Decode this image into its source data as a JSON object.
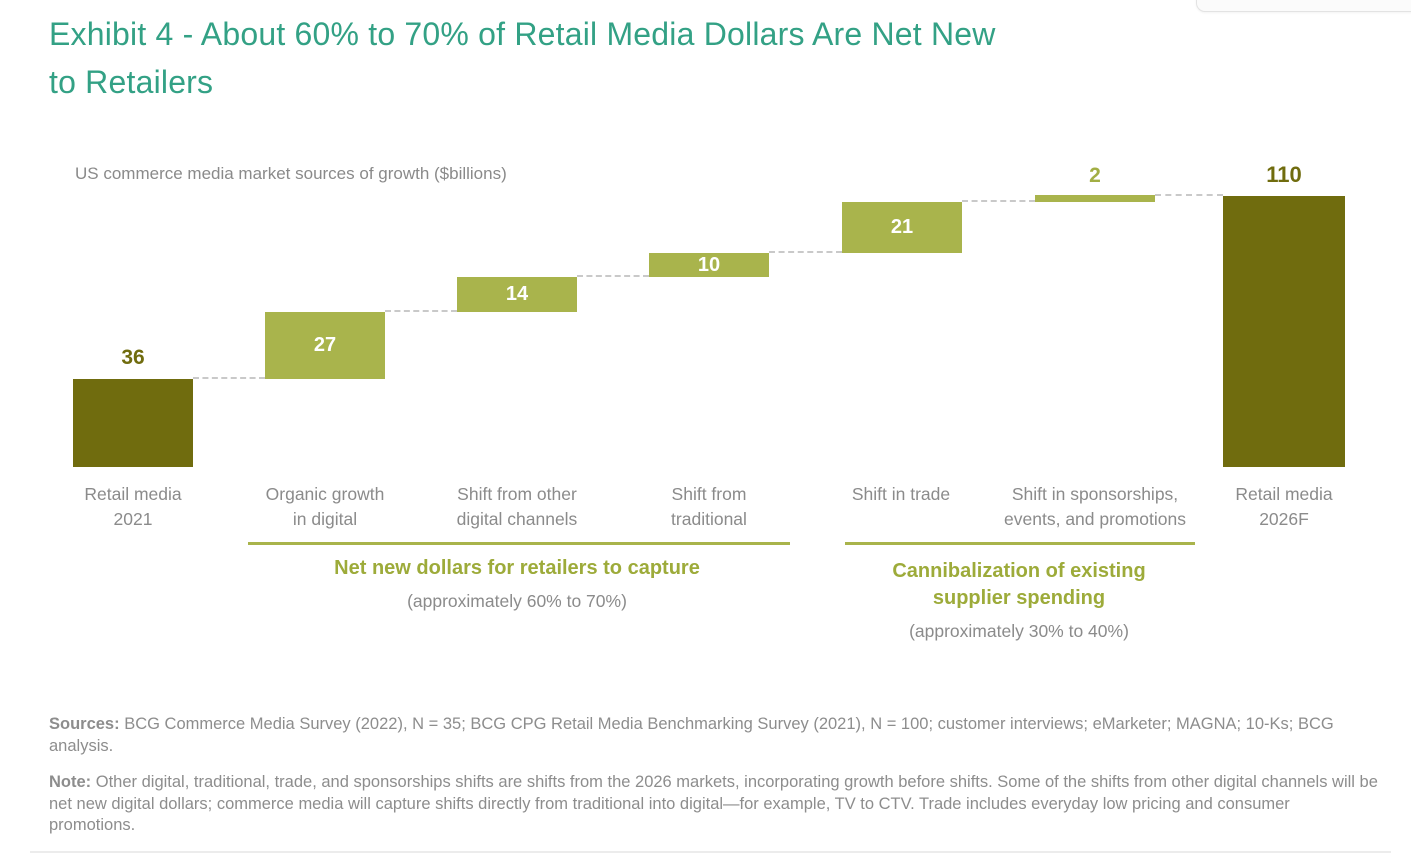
{
  "header": {
    "title_line1": "Exhibit 4 - About 60% to 70% of Retail Media Dollars Are Net New",
    "title_line2": "to Retailers"
  },
  "chart": {
    "subtitle": "US commerce media market sources of growth ($billions)",
    "bar_labels": [
      {
        "line1": "Retail media",
        "line2": "2021"
      },
      {
        "line1": "Organic growth",
        "line2": "in digital"
      },
      {
        "line1": "Shift from other",
        "line2": "digital channels"
      },
      {
        "line1": "Shift from",
        "line2": "traditional"
      },
      {
        "line1": "Shift in trade",
        "line2": ""
      },
      {
        "line1": "Shift in sponsorships,",
        "line2": "events, and promotions"
      },
      {
        "line1": "Retail media",
        "line2": "2026F"
      }
    ],
    "groups": [
      {
        "label": "Net new dollars for retailers to capture",
        "sublabel": "(approximately 60% to 70%)"
      },
      {
        "label": "Cannibalization of existing supplier spending",
        "sublabel": "(approximately 30% to 40%)"
      }
    ]
  },
  "chart_data": {
    "type": "bar",
    "subtype": "waterfall",
    "title": "Exhibit 4 - About 60% to 70% of Retail Media Dollars Are Net New to Retailers",
    "subtitle": "US commerce media market sources of growth ($billions)",
    "unit": "$billions",
    "categories": [
      "Retail media 2021",
      "Organic growth in digital",
      "Shift from other digital channels",
      "Shift from traditional",
      "Shift in trade",
      "Shift in sponsorships, events, and promotions",
      "Retail media 2026F"
    ],
    "values": [
      36,
      27,
      14,
      10,
      21,
      2,
      110
    ],
    "bar_roles": [
      "total",
      "increase",
      "increase",
      "increase",
      "increase",
      "increase",
      "total"
    ],
    "cumulative_start": [
      0,
      36,
      63,
      77,
      87,
      108,
      0
    ],
    "cumulative_end": [
      36,
      63,
      77,
      87,
      108,
      110,
      110
    ],
    "groups": [
      {
        "label": "Net new dollars for retailers to capture",
        "sublabel": "(approximately 60% to 70%)",
        "members": [
          "Organic growth in digital",
          "Shift from other digital channels",
          "Shift from traditional"
        ]
      },
      {
        "label": "Cannibalization of existing supplier spending",
        "sublabel": "(approximately 30% to 40%)",
        "members": [
          "Shift in trade",
          "Shift in sponsorships, events, and promotions"
        ]
      }
    ],
    "ylim": [
      0,
      110
    ],
    "grid": false,
    "legend": false,
    "connector_style": "dashed"
  },
  "footnotes": {
    "sources_label": "Sources:",
    "sources_text": " BCG Commerce Media Survey (2022), N = 35; BCG CPG Retail Media Benchmarking Survey (2021), N = 100; customer interviews; eMarketer; MAGNA; 10-Ks; BCG analysis.",
    "note_label": "Note:",
    "note_text": " Other digital, traditional, trade, and sponsorships shifts are shifts from the 2026 markets, incorporating growth before shifts. Some of the shifts from other digital channels will be net new digital dollars; commerce media will capture shifts directly from traditional into digital—for example, TV to CTV. Trade includes everyday low pricing and consumer promotions."
  },
  "colors": {
    "title_teal": "#33a185",
    "bar_dark_olive": "#706c0e",
    "bar_light_olive": "#a9b44c",
    "group_label_green": "#9dab3a",
    "underline_olive": "#a9b44b",
    "text_gray": "#8b8b8b",
    "connector_gray": "#c9c9c9",
    "value_text_white": "#ffffff"
  }
}
